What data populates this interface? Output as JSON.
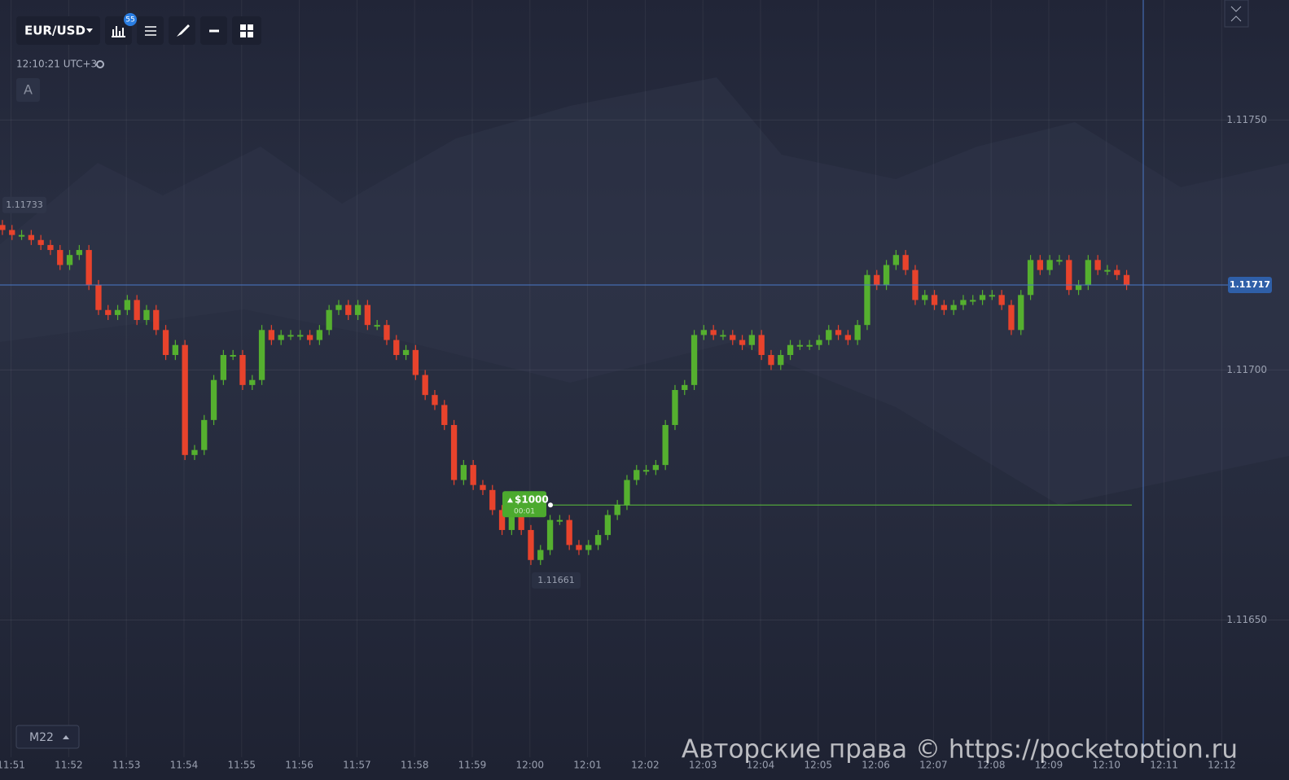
{
  "toolbar": {
    "symbol": "EUR/USD",
    "badge": "55"
  },
  "clock": "12:10:21 UTC+3",
  "drawing_label": "A",
  "timeframe": "M22",
  "watermark": "Авторские права © https://pocketoption.ru",
  "chart_data": {
    "type": "candlestick",
    "up_color": "#55b02f",
    "down_color": "#e8432c",
    "grid": true,
    "ylim": [
      1.11618,
      1.11774
    ],
    "yticks": [
      {
        "value": 1.1175,
        "label": "1.11750"
      },
      {
        "value": 1.117,
        "label": "1.11700"
      },
      {
        "value": 1.1165,
        "label": "1.11650"
      }
    ],
    "xlim": [
      -0.25,
      133.9
    ],
    "xticks": [
      {
        "value": 0.9,
        "label": "11:51"
      },
      {
        "value": 6.9,
        "label": "11:52"
      },
      {
        "value": 12.9,
        "label": "11:53"
      },
      {
        "value": 18.9,
        "label": "11:54"
      },
      {
        "value": 24.9,
        "label": "11:55"
      },
      {
        "value": 30.9,
        "label": "11:56"
      },
      {
        "value": 36.9,
        "label": "11:57"
      },
      {
        "value": 42.9,
        "label": "11:58"
      },
      {
        "value": 48.9,
        "label": "11:59"
      },
      {
        "value": 54.9,
        "label": "12:00"
      },
      {
        "value": 60.9,
        "label": "12:01"
      },
      {
        "value": 66.9,
        "label": "12:02"
      },
      {
        "value": 72.9,
        "label": "12:03"
      },
      {
        "value": 78.9,
        "label": "12:04"
      },
      {
        "value": 84.9,
        "label": "12:05"
      },
      {
        "value": 90.9,
        "label": "12:06"
      },
      {
        "value": 96.9,
        "label": "12:07"
      },
      {
        "value": 102.9,
        "label": "12:08"
      },
      {
        "value": 108.9,
        "label": "12:09"
      },
      {
        "value": 114.9,
        "label": "12:10"
      },
      {
        "value": 120.9,
        "label": "12:11"
      },
      {
        "value": 126.9,
        "label": "12:12"
      }
    ],
    "open": [
      1.11729,
      1.11728,
      1.11727,
      1.11727,
      1.11726,
      1.11725,
      1.11724,
      1.11721,
      1.11723,
      1.11724,
      1.11717,
      1.11712,
      1.11711,
      1.11712,
      1.11714,
      1.1171,
      1.11712,
      1.11708,
      1.11703,
      1.11705,
      1.11683,
      1.11684,
      1.1169,
      1.11698,
      1.11703,
      1.11703,
      1.11697,
      1.11698,
      1.11708,
      1.11706,
      1.11707,
      1.11707,
      1.11707,
      1.11706,
      1.11708,
      1.11712,
      1.11713,
      1.11711,
      1.11713,
      1.11709,
      1.11709,
      1.11706,
      1.11703,
      1.11704,
      1.11699,
      1.11695,
      1.11693,
      1.11689,
      1.11678,
      1.11681,
      1.11677,
      1.11676,
      1.11672,
      1.11668,
      1.11671,
      1.11668,
      1.11662,
      1.11664,
      1.1167,
      1.1167,
      1.11665,
      1.11664,
      1.11665,
      1.11667,
      1.11671,
      1.11673,
      1.11678,
      1.1168,
      1.1168,
      1.11681,
      1.11689,
      1.11696,
      1.11697,
      1.11707,
      1.11708,
      1.11707,
      1.11707,
      1.11706,
      1.11705,
      1.11707,
      1.11703,
      1.11701,
      1.11703,
      1.11705,
      1.11705,
      1.11705,
      1.11706,
      1.11708,
      1.11707,
      1.11706,
      1.11709,
      1.11719,
      1.11717,
      1.11721,
      1.11723,
      1.1172,
      1.11714,
      1.11715,
      1.11713,
      1.11712,
      1.11713,
      1.11714,
      1.11714,
      1.11715,
      1.11715,
      1.11713,
      1.11708,
      1.11715,
      1.11722,
      1.1172,
      1.11722,
      1.11722,
      1.11716,
      1.11717,
      1.11722,
      1.1172,
      1.1172,
      1.11719
    ],
    "high": [
      1.1173,
      1.11729,
      1.11728,
      1.11728,
      1.11727,
      1.11726,
      1.11725,
      1.11724,
      1.11725,
      1.11725,
      1.11718,
      1.11713,
      1.11713,
      1.11715,
      1.11715,
      1.11713,
      1.11713,
      1.11709,
      1.11706,
      1.11706,
      1.11685,
      1.11691,
      1.11699,
      1.11704,
      1.11704,
      1.11704,
      1.11699,
      1.11709,
      1.11709,
      1.11708,
      1.11708,
      1.11708,
      1.11708,
      1.11709,
      1.11713,
      1.11714,
      1.11714,
      1.11714,
      1.11714,
      1.1171,
      1.1171,
      1.11707,
      1.11705,
      1.11705,
      1.117,
      1.11696,
      1.11694,
      1.1169,
      1.11682,
      1.11682,
      1.11678,
      1.11677,
      1.11673,
      1.11672,
      1.11672,
      1.11669,
      1.11665,
      1.11671,
      1.11671,
      1.11671,
      1.11666,
      1.11666,
      1.11668,
      1.11672,
      1.11674,
      1.11679,
      1.11681,
      1.11681,
      1.11682,
      1.1169,
      1.11697,
      1.11698,
      1.11708,
      1.11709,
      1.11709,
      1.11708,
      1.11708,
      1.11707,
      1.11708,
      1.11708,
      1.11704,
      1.11704,
      1.11706,
      1.11706,
      1.11706,
      1.11707,
      1.11709,
      1.11709,
      1.11708,
      1.1171,
      1.1172,
      1.1172,
      1.11722,
      1.11724,
      1.11724,
      1.11721,
      1.11716,
      1.11716,
      1.11714,
      1.11714,
      1.11715,
      1.11715,
      1.11716,
      1.11716,
      1.11716,
      1.11714,
      1.11716,
      1.11723,
      1.11723,
      1.11723,
      1.11723,
      1.11723,
      1.11718,
      1.11723,
      1.11723,
      1.11721,
      1.11721,
      1.1172
    ],
    "low": [
      1.11727,
      1.11726,
      1.11726,
      1.11725,
      1.11724,
      1.11723,
      1.1172,
      1.1172,
      1.11722,
      1.11716,
      1.11711,
      1.1171,
      1.1171,
      1.11711,
      1.11709,
      1.11709,
      1.11707,
      1.11702,
      1.11702,
      1.11682,
      1.11682,
      1.11683,
      1.11689,
      1.11697,
      1.11702,
      1.11696,
      1.11696,
      1.11697,
      1.11705,
      1.11705,
      1.11706,
      1.11706,
      1.11705,
      1.11705,
      1.11707,
      1.11711,
      1.1171,
      1.1171,
      1.11708,
      1.11708,
      1.11705,
      1.11702,
      1.11702,
      1.11698,
      1.11694,
      1.11692,
      1.11688,
      1.11677,
      1.11677,
      1.11676,
      1.11675,
      1.11671,
      1.11667,
      1.11667,
      1.11667,
      1.11661,
      1.11661,
      1.11663,
      1.11669,
      1.11664,
      1.11663,
      1.11663,
      1.11664,
      1.11666,
      1.1167,
      1.11672,
      1.11677,
      1.11679,
      1.11679,
      1.1168,
      1.11688,
      1.11695,
      1.11696,
      1.11706,
      1.11706,
      1.11706,
      1.11705,
      1.11704,
      1.11704,
      1.11702,
      1.117,
      1.117,
      1.11702,
      1.11704,
      1.11704,
      1.11704,
      1.11705,
      1.11706,
      1.11705,
      1.11705,
      1.11708,
      1.11716,
      1.11716,
      1.1172,
      1.11719,
      1.11713,
      1.11713,
      1.11712,
      1.11711,
      1.11711,
      1.11712,
      1.11713,
      1.11713,
      1.11714,
      1.11712,
      1.11707,
      1.11707,
      1.11714,
      1.11719,
      1.11719,
      1.11721,
      1.11715,
      1.11715,
      1.11716,
      1.11719,
      1.11719,
      1.11718,
      1.11716
    ],
    "close": [
      1.11728,
      1.11727,
      1.11727,
      1.11726,
      1.11725,
      1.11724,
      1.11721,
      1.11723,
      1.11724,
      1.11717,
      1.11712,
      1.11711,
      1.11712,
      1.11714,
      1.1171,
      1.11712,
      1.11708,
      1.11703,
      1.11705,
      1.11683,
      1.11684,
      1.1169,
      1.11698,
      1.11703,
      1.11703,
      1.11697,
      1.11698,
      1.11708,
      1.11706,
      1.11707,
      1.11707,
      1.11707,
      1.11706,
      1.11708,
      1.11712,
      1.11713,
      1.11711,
      1.11713,
      1.11709,
      1.11709,
      1.11706,
      1.11703,
      1.11704,
      1.11699,
      1.11695,
      1.11693,
      1.11689,
      1.11678,
      1.11681,
      1.11677,
      1.11676,
      1.11672,
      1.11668,
      1.11671,
      1.11668,
      1.11662,
      1.11664,
      1.1167,
      1.1167,
      1.11665,
      1.11664,
      1.11665,
      1.11667,
      1.11671,
      1.11673,
      1.11678,
      1.1168,
      1.1168,
      1.11681,
      1.11689,
      1.11696,
      1.11697,
      1.11707,
      1.11708,
      1.11707,
      1.11707,
      1.11706,
      1.11705,
      1.11707,
      1.11703,
      1.11701,
      1.11703,
      1.11705,
      1.11705,
      1.11705,
      1.11706,
      1.11708,
      1.11707,
      1.11706,
      1.11709,
      1.11719,
      1.11717,
      1.11721,
      1.11723,
      1.1172,
      1.11714,
      1.11715,
      1.11713,
      1.11712,
      1.11713,
      1.11714,
      1.11714,
      1.11715,
      1.11715,
      1.11713,
      1.11708,
      1.11715,
      1.11722,
      1.1172,
      1.11722,
      1.11722,
      1.11716,
      1.11717,
      1.11722,
      1.1172,
      1.1172,
      1.11719,
      1.11717
    ],
    "current_price": 1.11717,
    "marker_price": 1.11733,
    "period_low": 1.11661,
    "trade": {
      "amount": "$1000",
      "timer": "00:01",
      "price": 1.11673
    }
  }
}
